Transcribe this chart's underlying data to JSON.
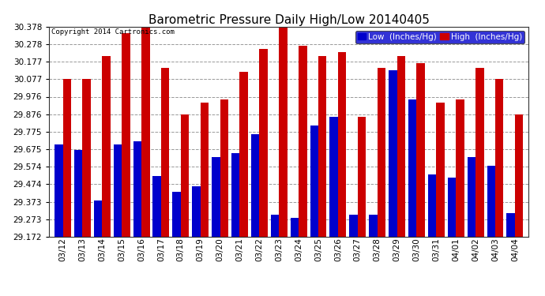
{
  "title": "Barometric Pressure Daily High/Low 20140405",
  "copyright": "Copyright 2014 Cartronics.com",
  "legend_low": "Low  (Inches/Hg)",
  "legend_high": "High  (Inches/Hg)",
  "dates": [
    "03/12",
    "03/13",
    "03/14",
    "03/15",
    "03/16",
    "03/17",
    "03/18",
    "03/19",
    "03/20",
    "03/21",
    "03/22",
    "03/23",
    "03/24",
    "03/25",
    "03/26",
    "03/27",
    "03/28",
    "03/29",
    "03/30",
    "03/31",
    "04/01",
    "04/02",
    "04/03",
    "04/04"
  ],
  "low_values": [
    29.7,
    29.67,
    29.38,
    29.7,
    29.72,
    29.52,
    29.43,
    29.46,
    29.63,
    29.65,
    29.76,
    29.3,
    29.28,
    29.81,
    29.86,
    29.3,
    29.3,
    30.13,
    29.96,
    29.53,
    29.51,
    29.63,
    29.58,
    29.31
  ],
  "high_values": [
    30.077,
    30.077,
    30.21,
    30.34,
    30.378,
    30.14,
    29.876,
    29.94,
    29.96,
    30.12,
    30.25,
    30.378,
    30.27,
    30.21,
    30.23,
    29.86,
    30.14,
    30.21,
    30.17,
    29.94,
    29.96,
    30.14,
    30.077,
    29.876
  ],
  "ylim_min": 29.172,
  "ylim_max": 30.378,
  "yticks": [
    29.172,
    29.273,
    29.373,
    29.474,
    29.574,
    29.675,
    29.775,
    29.876,
    29.976,
    30.077,
    30.177,
    30.278,
    30.378
  ],
  "low_color": "#0000cc",
  "high_color": "#cc0000",
  "bg_color": "#ffffff",
  "grid_color": "#999999",
  "title_fontsize": 11,
  "tick_fontsize": 7.5,
  "legend_fontsize": 7.5,
  "bar_width": 0.42
}
